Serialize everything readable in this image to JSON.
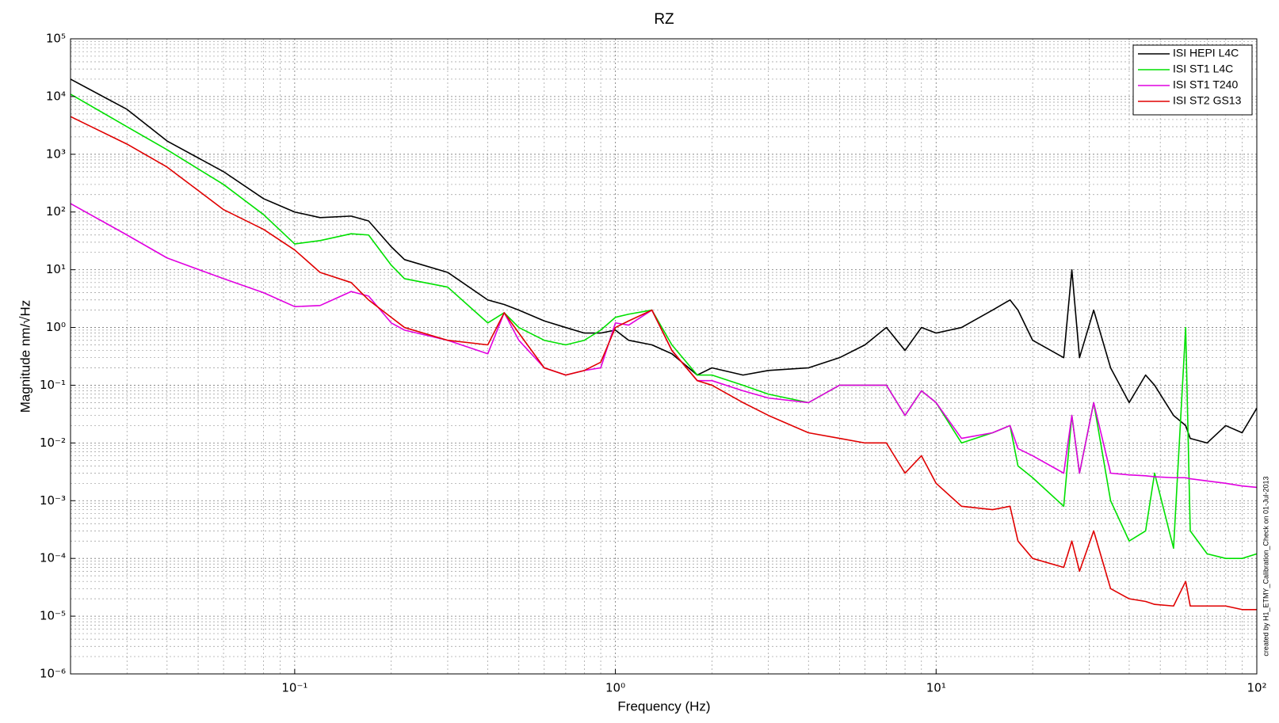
{
  "chart_data": {
    "type": "line",
    "title": "RZ",
    "x_label": "Frequency (Hz)",
    "y_label": "Magnitude nm/√Hz",
    "annotation": "created by H1_ETMY_Calibration_Check on 01-Jul-2013",
    "log_x": true,
    "log_y": true,
    "grid": true,
    "legend_position": "upper-right",
    "xlim": [
      0.02,
      100
    ],
    "ylim": [
      1e-06,
      100000.0
    ],
    "xticks": [
      {
        "value": 0.1,
        "label": "10⁻¹"
      },
      {
        "value": 1,
        "label": "10⁰"
      },
      {
        "value": 10,
        "label": "10¹"
      },
      {
        "value": 100,
        "label": "10²"
      }
    ],
    "yticks": [
      {
        "value": 1e-06,
        "label": "10⁻⁶"
      },
      {
        "value": 1e-05,
        "label": "10⁻⁵"
      },
      {
        "value": 0.0001,
        "label": "10⁻⁴"
      },
      {
        "value": 0.001,
        "label": "10⁻³"
      },
      {
        "value": 0.01,
        "label": "10⁻²"
      },
      {
        "value": 0.1,
        "label": "10⁻¹"
      },
      {
        "value": 1,
        "label": "10⁰"
      },
      {
        "value": 10,
        "label": "10¹"
      },
      {
        "value": 100,
        "label": "10²"
      },
      {
        "value": 1000,
        "label": "10³"
      },
      {
        "value": 10000,
        "label": "10⁴"
      },
      {
        "value": 100000,
        "label": "10⁵"
      }
    ],
    "xminorticks": [
      0.03,
      0.04,
      0.05,
      0.06,
      0.07,
      0.08,
      0.09,
      0.2,
      0.3,
      0.4,
      0.5,
      0.6,
      0.7,
      0.8,
      0.9,
      2,
      3,
      4,
      5,
      6,
      7,
      8,
      9,
      20,
      30,
      40,
      50,
      60,
      70,
      80,
      90
    ],
    "yminorticks": [
      2e-06,
      3e-06,
      4e-06,
      5e-06,
      6e-06,
      7e-06,
      8e-06,
      9e-06,
      2e-05,
      3e-05,
      4e-05,
      5e-05,
      6e-05,
      7e-05,
      8e-05,
      9e-05,
      0.0002,
      0.0003,
      0.0004,
      0.0005,
      0.0006,
      0.0007,
      0.0008,
      0.0009,
      0.002,
      0.003,
      0.004,
      0.005,
      0.006,
      0.007,
      0.008,
      0.009,
      0.02,
      0.03,
      0.04,
      0.05,
      0.06,
      0.07,
      0.08,
      0.09,
      0.2,
      0.3,
      0.4,
      0.5,
      0.6,
      0.7,
      0.8,
      0.9,
      2,
      3,
      4,
      5,
      6,
      7,
      8,
      9,
      20,
      30,
      40,
      50,
      60,
      70,
      80,
      90,
      200,
      300,
      400,
      500,
      600,
      700,
      800,
      900,
      2000,
      3000,
      4000,
      5000,
      6000,
      7000,
      8000,
      9000,
      20000,
      30000,
      40000,
      50000,
      60000,
      70000,
      80000,
      90000
    ],
    "x": [
      0.02,
      0.03,
      0.04,
      0.06,
      0.08,
      0.1,
      0.12,
      0.15,
      0.17,
      0.2,
      0.22,
      0.3,
      0.4,
      0.45,
      0.5,
      0.6,
      0.7,
      0.8,
      0.9,
      1.0,
      1.1,
      1.3,
      1.5,
      1.8,
      2,
      2.5,
      3,
      4,
      5,
      6,
      7,
      8,
      9,
      10,
      12,
      15,
      17,
      18,
      20,
      25,
      26.5,
      28,
      31,
      35,
      40,
      45,
      48,
      55,
      60,
      62,
      70,
      80,
      90,
      100
    ],
    "series": [
      {
        "name": "ISI HEPI L4C",
        "color": "#000000",
        "values": [
          20000,
          6000,
          1700,
          500,
          170,
          100,
          80,
          85,
          70,
          25,
          15,
          9,
          3,
          2.5,
          2,
          1.3,
          1,
          0.8,
          0.8,
          0.9,
          0.6,
          0.5,
          0.35,
          0.15,
          0.2,
          0.15,
          0.18,
          0.2,
          0.3,
          0.5,
          1,
          0.4,
          1,
          0.8,
          1,
          2,
          3,
          2,
          0.6,
          0.3,
          10,
          0.3,
          2,
          0.2,
          0.05,
          0.15,
          0.1,
          0.03,
          0.02,
          0.012,
          0.01,
          0.02,
          0.015,
          0.04
        ]
      },
      {
        "name": "ISI ST1 L4C",
        "color": "#00e000",
        "values": [
          11000,
          3000,
          1200,
          300,
          90,
          28,
          32,
          42,
          40,
          12,
          7,
          5,
          1.2,
          1.8,
          1,
          0.6,
          0.5,
          0.6,
          0.9,
          1.5,
          1.7,
          2,
          0.5,
          0.15,
          0.15,
          0.1,
          0.07,
          0.05,
          0.1,
          0.1,
          0.1,
          0.03,
          0.08,
          0.05,
          0.01,
          0.015,
          0.02,
          0.004,
          0.0025,
          0.0008,
          0.03,
          0.003,
          0.05,
          0.001,
          0.0002,
          0.0003,
          0.003,
          0.00015,
          1.0,
          0.0003,
          0.00012,
          0.0001,
          0.0001,
          0.00012
        ]
      },
      {
        "name": "ISI ST1 T240",
        "color": "#e000e0",
        "values": [
          140,
          40,
          16,
          7,
          4,
          2.3,
          2.4,
          4.2,
          3.5,
          1.2,
          0.9,
          0.6,
          0.35,
          1.8,
          0.6,
          0.2,
          0.15,
          0.18,
          0.2,
          1.2,
          1.1,
          2,
          0.4,
          0.12,
          0.12,
          0.08,
          0.06,
          0.05,
          0.1,
          0.1,
          0.1,
          0.03,
          0.08,
          0.05,
          0.012,
          0.015,
          0.02,
          0.008,
          0.006,
          0.003,
          0.03,
          0.003,
          0.05,
          0.003,
          0.0028,
          0.0027,
          0.0026,
          0.0025,
          0.0025,
          0.0024,
          0.0022,
          0.002,
          0.0018,
          0.0017
        ]
      },
      {
        "name": "ISI ST2 GS13",
        "color": "#e00000",
        "values": [
          4500,
          1500,
          600,
          110,
          50,
          22,
          9,
          6,
          3,
          1.5,
          1,
          0.6,
          0.5,
          1.8,
          0.8,
          0.2,
          0.15,
          0.18,
          0.25,
          1,
          1.3,
          2,
          0.4,
          0.12,
          0.1,
          0.05,
          0.03,
          0.015,
          0.012,
          0.01,
          0.01,
          0.003,
          0.006,
          0.002,
          0.0008,
          0.0007,
          0.0008,
          0.0002,
          0.0001,
          7e-05,
          0.0002,
          6e-05,
          0.0003,
          3e-05,
          2e-05,
          1.8e-05,
          1.6e-05,
          1.5e-05,
          4e-05,
          1.5e-05,
          1.5e-05,
          1.5e-05,
          1.3e-05,
          1.3e-05
        ]
      }
    ]
  }
}
